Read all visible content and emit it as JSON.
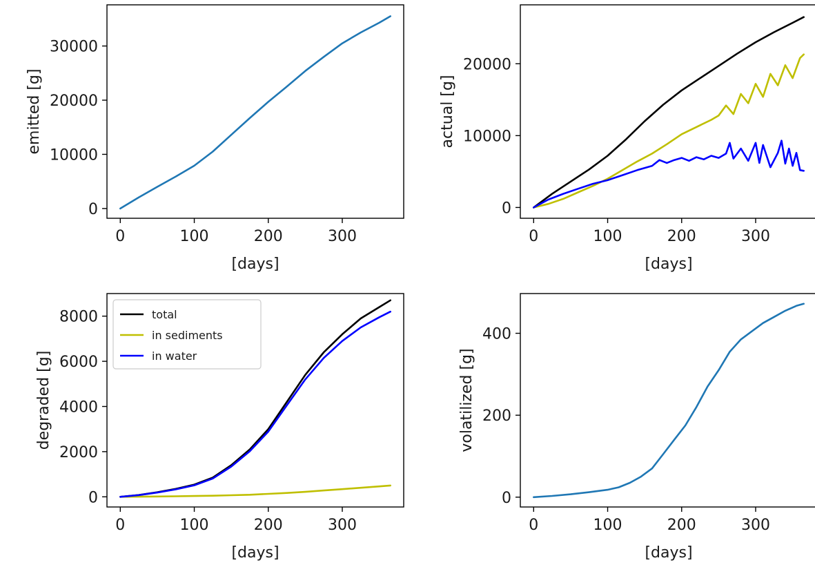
{
  "chart_data": [
    {
      "type": "line",
      "xlabel": "[days]",
      "ylabel": "emitted [g]",
      "xlim": [
        -18,
        383
      ],
      "ylim": [
        -1800,
        37600
      ],
      "xticks": [
        0,
        100,
        200,
        300
      ],
      "yticks": [
        0,
        10000,
        20000,
        30000
      ],
      "grid": false,
      "series": [
        {
          "color": "#1f77b4",
          "x": [
            0,
            25,
            50,
            75,
            100,
            125,
            150,
            175,
            200,
            225,
            250,
            275,
            300,
            325,
            350,
            365
          ],
          "y": [
            0,
            2050,
            4000,
            5900,
            7900,
            10500,
            13600,
            16700,
            19700,
            22500,
            25400,
            28000,
            30500,
            32500,
            34300,
            35500
          ]
        }
      ]
    },
    {
      "type": "line",
      "xlabel": "[days]",
      "ylabel": "actual [g]",
      "xlim": [
        -18,
        383
      ],
      "ylim": [
        -1500,
        28200
      ],
      "xticks": [
        0,
        100,
        200,
        300
      ],
      "yticks": [
        0,
        10000,
        20000
      ],
      "grid": false,
      "series": [
        {
          "color": "#000000",
          "x": [
            0,
            25,
            50,
            75,
            100,
            125,
            150,
            175,
            200,
            225,
            250,
            275,
            300,
            325,
            350,
            365
          ],
          "y": [
            0,
            1900,
            3600,
            5300,
            7200,
            9500,
            12000,
            14300,
            16300,
            18000,
            19700,
            21400,
            23000,
            24400,
            25700,
            26500
          ]
        },
        {
          "color": "#bfbf00",
          "x": [
            0,
            20,
            40,
            60,
            80,
            100,
            120,
            140,
            160,
            180,
            200,
            220,
            240,
            250,
            260,
            270,
            280,
            290,
            300,
            310,
            320,
            330,
            340,
            350,
            360,
            365
          ],
          "y": [
            0,
            500,
            1200,
            2100,
            3000,
            4000,
            5200,
            6400,
            7500,
            8800,
            10200,
            11200,
            12200,
            12800,
            14200,
            13000,
            15800,
            14500,
            17200,
            15400,
            18600,
            17000,
            19800,
            18000,
            20800,
            21300
          ]
        },
        {
          "color": "#0000ff",
          "x": [
            0,
            20,
            40,
            60,
            80,
            100,
            120,
            140,
            160,
            170,
            180,
            190,
            200,
            210,
            220,
            230,
            240,
            250,
            260,
            265,
            270,
            280,
            290,
            300,
            305,
            310,
            320,
            330,
            335,
            340,
            345,
            350,
            355,
            360,
            365
          ],
          "y": [
            0,
            1100,
            1900,
            2600,
            3300,
            3800,
            4500,
            5200,
            5800,
            6600,
            6200,
            6600,
            6900,
            6500,
            7000,
            6700,
            7200,
            6900,
            7500,
            9000,
            6800,
            8200,
            6500,
            9000,
            6200,
            8700,
            5600,
            7600,
            9300,
            6100,
            8200,
            5800,
            7600,
            5200,
            5100
          ]
        }
      ]
    },
    {
      "type": "line",
      "xlabel": "[days]",
      "ylabel": "degraded [g]",
      "xlim": [
        -18,
        383
      ],
      "ylim": [
        -450,
        9000
      ],
      "xticks": [
        0,
        100,
        200,
        300
      ],
      "yticks": [
        0,
        2000,
        4000,
        6000,
        8000
      ],
      "grid": false,
      "legend": "top-left",
      "series": [
        {
          "name": "total",
          "color": "#000000",
          "x": [
            0,
            25,
            50,
            75,
            100,
            125,
            150,
            175,
            200,
            225,
            250,
            275,
            300,
            325,
            350,
            365
          ],
          "y": [
            0,
            80,
            200,
            350,
            540,
            850,
            1400,
            2100,
            3000,
            4200,
            5400,
            6400,
            7200,
            7900,
            8400,
            8700
          ]
        },
        {
          "name": "in sediments",
          "color": "#bfbf00",
          "x": [
            0,
            25,
            50,
            75,
            100,
            125,
            150,
            175,
            200,
            225,
            250,
            275,
            300,
            325,
            350,
            365
          ],
          "y": [
            0,
            5,
            15,
            25,
            35,
            50,
            70,
            90,
            130,
            170,
            220,
            280,
            340,
            400,
            460,
            500
          ]
        },
        {
          "name": "in water",
          "color": "#0000ff",
          "x": [
            0,
            25,
            50,
            75,
            100,
            125,
            150,
            175,
            200,
            225,
            250,
            275,
            300,
            325,
            350,
            365
          ],
          "y": [
            0,
            75,
            190,
            330,
            510,
            810,
            1340,
            2020,
            2890,
            4050,
            5200,
            6150,
            6900,
            7500,
            7950,
            8200
          ]
        }
      ]
    },
    {
      "type": "line",
      "xlabel": "[days]",
      "ylabel": "volatilized [g]",
      "xlim": [
        -18,
        383
      ],
      "ylim": [
        -24,
        497
      ],
      "xticks": [
        0,
        100,
        200,
        300
      ],
      "yticks": [
        0,
        200,
        400
      ],
      "grid": false,
      "series": [
        {
          "color": "#1f77b4",
          "x": [
            0,
            25,
            50,
            75,
            100,
            115,
            130,
            145,
            160,
            175,
            190,
            205,
            220,
            235,
            250,
            265,
            280,
            295,
            310,
            325,
            340,
            355,
            365
          ],
          "y": [
            0,
            3,
            7,
            12,
            18,
            24,
            35,
            50,
            70,
            105,
            140,
            175,
            220,
            270,
            310,
            355,
            385,
            405,
            425,
            440,
            455,
            467,
            472
          ]
        }
      ]
    }
  ]
}
